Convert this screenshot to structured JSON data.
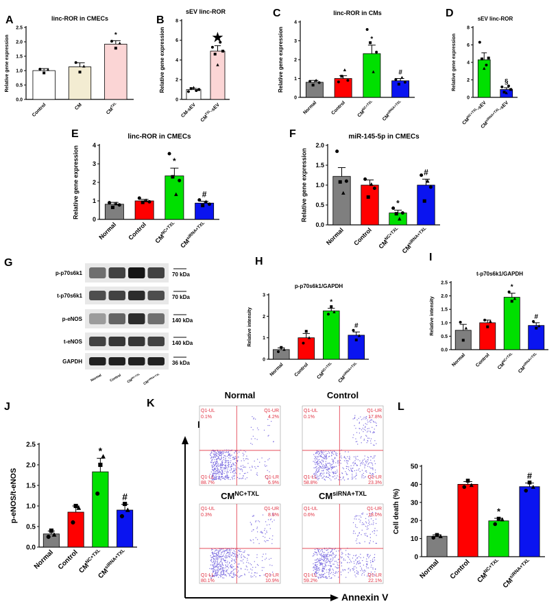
{
  "colors": {
    "white": "#ffffff",
    "beige": "#f3ecd2",
    "pink": "#fbd5d5",
    "gray": "#7f7f7f",
    "red": "#ff0000",
    "green": "#00e000",
    "blue": "#0a14f0",
    "dot_purple": "#7a6be0",
    "gate_red": "#e03040"
  },
  "panels": {
    "A": {
      "letter": "A",
      "title": "linc-ROR in CMECs",
      "ylabel": "Relative gene expression",
      "yticks": [
        0.0,
        0.5,
        1.0,
        1.5,
        2.0,
        2.5
      ],
      "ylim": [
        0,
        2.5
      ],
      "categories": [
        "Control",
        "CM",
        "CMTXL"
      ],
      "ticklabels": [
        "Control",
        "CM",
        "CM^TXL"
      ],
      "values": [
        1.0,
        1.13,
        1.92
      ],
      "err": [
        0.07,
        0.14,
        0.12
      ],
      "points": [
        [
          1.05,
          0.92,
          1.03
        ],
        [
          1.28,
          0.95,
          1.15
        ],
        [
          2.02,
          1.78,
          1.95
        ]
      ],
      "colors": [
        "white",
        "beige",
        "pink"
      ],
      "annotations": [
        "",
        "",
        "*"
      ]
    },
    "B": {
      "letter": "B",
      "title": "sEV linc-ROR",
      "ylabel": "Relative gene expression",
      "yticks": [
        0,
        2,
        4,
        6,
        8
      ],
      "ylim": [
        0,
        8
      ],
      "categories": [
        "CM-sEV",
        "CMTXL-sEV"
      ],
      "ticklabels": [
        "CM-sEV",
        "CM^TXL-sEV"
      ],
      "values": [
        1.0,
        4.9
      ],
      "err": [
        0.12,
        0.55
      ],
      "points": [
        [
          0.8,
          1.1,
          1.2,
          0.9,
          1.0
        ],
        [
          5.3,
          4.6,
          3.5,
          5.8,
          4.9
        ]
      ],
      "colors": [
        "white",
        "pink"
      ],
      "annotations": [
        "",
        "★"
      ]
    },
    "C": {
      "letter": "C",
      "title": "linc-ROR in CMs",
      "ylabel": "Relative gene expression",
      "yticks": [
        0,
        1,
        2,
        3,
        4
      ],
      "ylim": [
        0,
        4
      ],
      "categories": [
        "Normal",
        "Control",
        "CMNC+TXL",
        "CMsiRNA+TXL"
      ],
      "ticklabels": [
        "Normal",
        "Control",
        "CM^NC+TXL",
        "CM^siRNA+TXL"
      ],
      "values": [
        0.8,
        1.0,
        2.32,
        0.88
      ],
      "err": [
        0.1,
        0.15,
        0.45,
        0.12
      ],
      "points": [
        [
          0.85,
          0.65,
          0.9,
          0.78
        ],
        [
          0.82,
          1.12,
          1.45,
          0.9
        ],
        [
          3.6,
          2.9,
          1.35,
          2.4
        ],
        [
          0.95,
          0.7,
          1.05,
          0.8
        ]
      ],
      "colors": [
        "gray",
        "red",
        "green",
        "blue"
      ],
      "annotations": [
        "",
        "",
        "*",
        "#"
      ]
    },
    "D": {
      "letter": "D",
      "title": "sEV linc-ROR",
      "ylabel": "Relative gene expression",
      "yticks": [
        0,
        2,
        4,
        6,
        8
      ],
      "ylim": [
        0,
        8
      ],
      "categories": [
        "CMNC+TXL-sEV",
        "CMsiRNA+TXL-sEV"
      ],
      "ticklabels": [
        "CM^NC+TXL-sEV",
        "CM^siRNA+TXL-sEV"
      ],
      "values": [
        4.3,
        0.9
      ],
      "err": [
        0.8,
        0.2
      ],
      "points": [
        [
          6.3,
          4.4,
          3.3,
          3.7,
          4.5
        ],
        [
          1.2,
          0.6,
          0.5,
          1.3,
          0.9
        ]
      ],
      "colors": [
        "green",
        "blue"
      ],
      "annotations": [
        "",
        "§"
      ]
    },
    "E": {
      "letter": "E",
      "title": "linc-ROR in CMECs",
      "ylabel": "Relative gene expression",
      "yticks": [
        0,
        1,
        2,
        3,
        4
      ],
      "ylim": [
        0,
        4
      ],
      "categories": [
        "Normal",
        "Control",
        "CMNC+TXL",
        "CMsiRNA+TXL"
      ],
      "ticklabels": [
        "Normal",
        "Control",
        "CM^NC+TXL",
        "CM^siRNA+TXL"
      ],
      "values": [
        0.82,
        1.0,
        2.35,
        0.88
      ],
      "err": [
        0.1,
        0.08,
        0.42,
        0.1
      ],
      "points": [
        [
          0.9,
          0.65,
          0.85,
          0.78
        ],
        [
          1.15,
          0.92,
          1.02,
          0.95
        ],
        [
          3.55,
          2.3,
          1.35,
          2.1
        ],
        [
          1.05,
          0.75,
          0.95,
          0.82
        ]
      ],
      "colors": [
        "gray",
        "red",
        "green",
        "blue"
      ],
      "annotations": [
        "",
        "",
        "*",
        "#"
      ]
    },
    "F": {
      "letter": "F",
      "title": "miR-145-5p in CMECs",
      "ylabel": "Relative gene expression",
      "yticks": [
        0.0,
        0.5,
        1.0,
        1.5,
        2.0
      ],
      "ylim": [
        0,
        2.0
      ],
      "categories": [
        "Normal",
        "Control",
        "CMNC+TXL",
        "CMsiRNA+TXL"
      ],
      "ticklabels": [
        "Normal",
        "Control",
        "CM^NC+TXL",
        "CM^siRNA+TXL"
      ],
      "values": [
        1.22,
        1.0,
        0.3,
        1.0
      ],
      "err": [
        0.22,
        0.13,
        0.07,
        0.15
      ],
      "points": [
        [
          1.85,
          1.08,
          0.8,
          1.1
        ],
        [
          1.15,
          0.7,
          1.02,
          0.92
        ],
        [
          0.42,
          0.28,
          0.15,
          0.3
        ],
        [
          1.25,
          0.6,
          1.1,
          0.95
        ]
      ],
      "colors": [
        "gray",
        "red",
        "green",
        "blue"
      ],
      "annotations": [
        "",
        "",
        "*",
        "#"
      ]
    },
    "H": {
      "letter": "H",
      "title": "p-p70s6k1/GAPDH",
      "ylabel": "Relative intensity",
      "yticks": [
        0,
        1,
        2,
        3
      ],
      "ylim": [
        0,
        3
      ],
      "categories": [
        "Normal",
        "Control",
        "CMNC+TXL",
        "CMsiRNA+TXL"
      ],
      "ticklabels": [
        "Normal",
        "Control",
        "CM^NC+TXL",
        "CM^siRNA+TXL"
      ],
      "values": [
        0.45,
        1.0,
        2.25,
        1.12
      ],
      "err": [
        0.08,
        0.2,
        0.12,
        0.15
      ],
      "points": [
        [
          0.35,
          0.55,
          0.45
        ],
        [
          0.75,
          1.3,
          1.0
        ],
        [
          2.1,
          2.45,
          2.2
        ],
        [
          1.35,
          0.9,
          1.1
        ]
      ],
      "colors": [
        "gray",
        "red",
        "green",
        "blue"
      ],
      "annotations": [
        "",
        "",
        "*",
        "#"
      ]
    },
    "I": {
      "letter": "I",
      "title": "t-p70s6k1/GAPDH",
      "ylabel": "Relative intensity",
      "yticks": [
        0.0,
        0.5,
        1.0,
        1.5,
        2.0,
        2.5
      ],
      "ylim": [
        0,
        2.5
      ],
      "categories": [
        "Normal",
        "Control",
        "CMNC+TXL",
        "CMsiRNA+TXL"
      ],
      "ticklabels": [
        "Normal",
        "Control",
        "CM^NC+TXL",
        "CM^siRNA+TXL"
      ],
      "values": [
        0.72,
        1.0,
        1.95,
        0.9
      ],
      "err": [
        0.22,
        0.1,
        0.15,
        0.1
      ],
      "points": [
        [
          1.02,
          0.35,
          0.8
        ],
        [
          1.1,
          0.85,
          1.05
        ],
        [
          2.15,
          1.8,
          1.9
        ],
        [
          1.05,
          0.8,
          0.88
        ]
      ],
      "colors": [
        "gray",
        "red",
        "green",
        "blue"
      ],
      "annotations": [
        "",
        "",
        "*",
        "#"
      ]
    },
    "J": {
      "letter": "J",
      "title": "",
      "ylabel": "p-eNOS/t-eNOS",
      "yticks": [
        0.0,
        0.5,
        1.0,
        1.5,
        2.0,
        2.5
      ],
      "ylim": [
        0,
        2.5
      ],
      "categories": [
        "Normal",
        "Control",
        "CMNC+TXL",
        "CMsiRNA+TXL"
      ],
      "ticklabels": [
        "Normal",
        "Control",
        "CM^NC+TXL",
        "CM^siRNA+TXL"
      ],
      "values": [
        0.32,
        0.85,
        1.83,
        0.9
      ],
      "err": [
        0.07,
        0.15,
        0.33,
        0.14
      ],
      "points": [
        [
          0.25,
          0.4,
          0.3
        ],
        [
          0.6,
          1.0,
          0.95
        ],
        [
          1.3,
          2.0,
          2.2
        ],
        [
          0.75,
          1.05,
          0.9
        ]
      ],
      "colors": [
        "gray",
        "red",
        "green",
        "blue"
      ],
      "annotations": [
        "",
        "",
        "*",
        "#"
      ]
    },
    "L": {
      "letter": "L",
      "title": "",
      "ylabel": "Cell death (%)",
      "yticks": [
        0,
        10,
        20,
        30,
        40,
        50
      ],
      "ylim": [
        0,
        50
      ],
      "categories": [
        "Normal",
        "Control",
        "CMNC+TXL",
        "CMsiRNA+TXL"
      ],
      "ticklabels": [
        "Normal",
        "Control",
        "CM^NC+TXL",
        "CM^siRNA+TXL"
      ],
      "values": [
        11.3,
        40.0,
        19.8,
        38.7
      ],
      "err": [
        0.8,
        1.5,
        1.4,
        2.0
      ],
      "points": [
        [
          10.5,
          12.0,
          11.2
        ],
        [
          38.5,
          42.0,
          39.5
        ],
        [
          18.0,
          21.0,
          20.5
        ],
        [
          36.5,
          41.0,
          38.5
        ]
      ],
      "colors": [
        "gray",
        "red",
        "green",
        "blue"
      ],
      "annotations": [
        "",
        "",
        "*",
        "#"
      ]
    }
  },
  "blot": {
    "letter": "G",
    "rows": [
      {
        "label": "p-p70s6k1",
        "size": "70 kDa",
        "intensity": [
          0.55,
          0.75,
          0.95,
          0.75
        ]
      },
      {
        "label": "t-p70s6k1",
        "size": "70 kDa",
        "intensity": [
          0.7,
          0.75,
          0.85,
          0.7
        ]
      },
      {
        "label": "p-eNOS",
        "size": "140 kDa",
        "intensity": [
          0.35,
          0.6,
          0.85,
          0.55
        ]
      },
      {
        "label": "t-eNOS",
        "size": "140 kDa",
        "intensity": [
          0.75,
          0.8,
          0.8,
          0.75
        ]
      },
      {
        "label": "GAPDH",
        "size": "36 kDa",
        "intensity": [
          0.9,
          0.9,
          0.9,
          0.9
        ]
      }
    ],
    "lane_labels": [
      "Normal",
      "Control",
      "CM^NC+TXL",
      "CM^siRNA+TXL"
    ]
  },
  "flow": {
    "letter": "K",
    "y_axis": "PI",
    "x_axis": "Annexin V",
    "plots": [
      {
        "title": "Normal",
        "quadrants": {
          "UL": "Q1-UL",
          "UR": "Q1-UR",
          "LL": "Q1-LL",
          "LR": "Q1-LR"
        },
        "values": {
          "UL": "0.1%",
          "UR": "4.2%",
          "LL": "88.7%",
          "LR": "6.9%"
        },
        "ur_frac": 0.04,
        "lr_frac": 0.07
      },
      {
        "title": "Control",
        "quadrants": {
          "UL": "Q1-UL",
          "UR": "Q1-UR",
          "LL": "Q1-LL",
          "LR": "Q1-LR"
        },
        "values": {
          "UL": "0.1%",
          "UR": "17.8%",
          "LL": "58.8%",
          "LR": "23.3%"
        },
        "ur_frac": 0.18,
        "lr_frac": 0.23
      },
      {
        "title": "CM^NC+TXL",
        "quadrants": {
          "UL": "Q1-UL",
          "UR": "Q1-UR",
          "LL": "Q1-LL",
          "LR": "Q1-LR"
        },
        "values": {
          "UL": "0.3%",
          "UR": "8.8%",
          "LL": "80.1%",
          "LR": "10.9%"
        },
        "ur_frac": 0.09,
        "lr_frac": 0.11
      },
      {
        "title": "CM^siRNA+TXL",
        "quadrants": {
          "UL": "Q1-UL",
          "UR": "Q1-UR",
          "LL": "Q1-LL",
          "LR": "Q1-LR"
        },
        "values": {
          "UL": "0.6%",
          "UR": "18.0%",
          "LL": "59.2%",
          "LR": "22.1%"
        },
        "ur_frac": 0.18,
        "lr_frac": 0.22
      }
    ]
  },
  "chart_data": [
    {
      "type": "bar",
      "title": "linc-ROR in CMECs",
      "ylabel": "Relative gene expression",
      "categories": [
        "Control",
        "CM",
        "CMTXL"
      ],
      "values": [
        1.0,
        1.13,
        1.92
      ],
      "ylim": [
        0,
        2.5
      ]
    },
    {
      "type": "bar",
      "title": "sEV linc-ROR",
      "ylabel": "Relative gene expression",
      "categories": [
        "CM-sEV",
        "CMTXL-sEV"
      ],
      "values": [
        1.0,
        4.9
      ],
      "ylim": [
        0,
        8
      ]
    },
    {
      "type": "bar",
      "title": "linc-ROR in CMs",
      "ylabel": "Relative gene expression",
      "categories": [
        "Normal",
        "Control",
        "CMNC+TXL",
        "CMsiRNA+TXL"
      ],
      "values": [
        0.8,
        1.0,
        2.32,
        0.88
      ],
      "ylim": [
        0,
        4
      ]
    },
    {
      "type": "bar",
      "title": "sEV linc-ROR",
      "ylabel": "Relative gene expression",
      "categories": [
        "CMNC+TXL-sEV",
        "CMsiRNA+TXL-sEV"
      ],
      "values": [
        4.3,
        0.9
      ],
      "ylim": [
        0,
        8
      ]
    },
    {
      "type": "bar",
      "title": "linc-ROR in CMECs",
      "ylabel": "Relative gene expression",
      "categories": [
        "Normal",
        "Control",
        "CMNC+TXL",
        "CMsiRNA+TXL"
      ],
      "values": [
        0.82,
        1.0,
        2.35,
        0.88
      ],
      "ylim": [
        0,
        4
      ]
    },
    {
      "type": "bar",
      "title": "miR-145-5p in CMECs",
      "ylabel": "Relative gene expression",
      "categories": [
        "Normal",
        "Control",
        "CMNC+TXL",
        "CMsiRNA+TXL"
      ],
      "values": [
        1.22,
        1.0,
        0.3,
        1.0
      ],
      "ylim": [
        0,
        2.0
      ]
    },
    {
      "type": "bar",
      "title": "p-p70s6k1/GAPDH",
      "ylabel": "Relative intensity",
      "categories": [
        "Normal",
        "Control",
        "CMNC+TXL",
        "CMsiRNA+TXL"
      ],
      "values": [
        0.45,
        1.0,
        2.25,
        1.12
      ],
      "ylim": [
        0,
        3
      ]
    },
    {
      "type": "bar",
      "title": "t-p70s6k1/GAPDH",
      "ylabel": "Relative intensity",
      "categories": [
        "Normal",
        "Control",
        "CMNC+TXL",
        "CMsiRNA+TXL"
      ],
      "values": [
        0.72,
        1.0,
        1.95,
        0.9
      ],
      "ylim": [
        0,
        2.5
      ]
    },
    {
      "type": "bar",
      "title": "",
      "ylabel": "p-eNOS/t-eNOS",
      "categories": [
        "Normal",
        "Control",
        "CMNC+TXL",
        "CMsiRNA+TXL"
      ],
      "values": [
        0.32,
        0.85,
        1.83,
        0.9
      ],
      "ylim": [
        0,
        2.5
      ]
    },
    {
      "type": "bar",
      "title": "",
      "ylabel": "Cell death (%)",
      "categories": [
        "Normal",
        "Control",
        "CMNC+TXL",
        "CMsiRNA+TXL"
      ],
      "values": [
        11.3,
        40.0,
        19.8,
        38.7
      ],
      "ylim": [
        0,
        50
      ]
    }
  ]
}
